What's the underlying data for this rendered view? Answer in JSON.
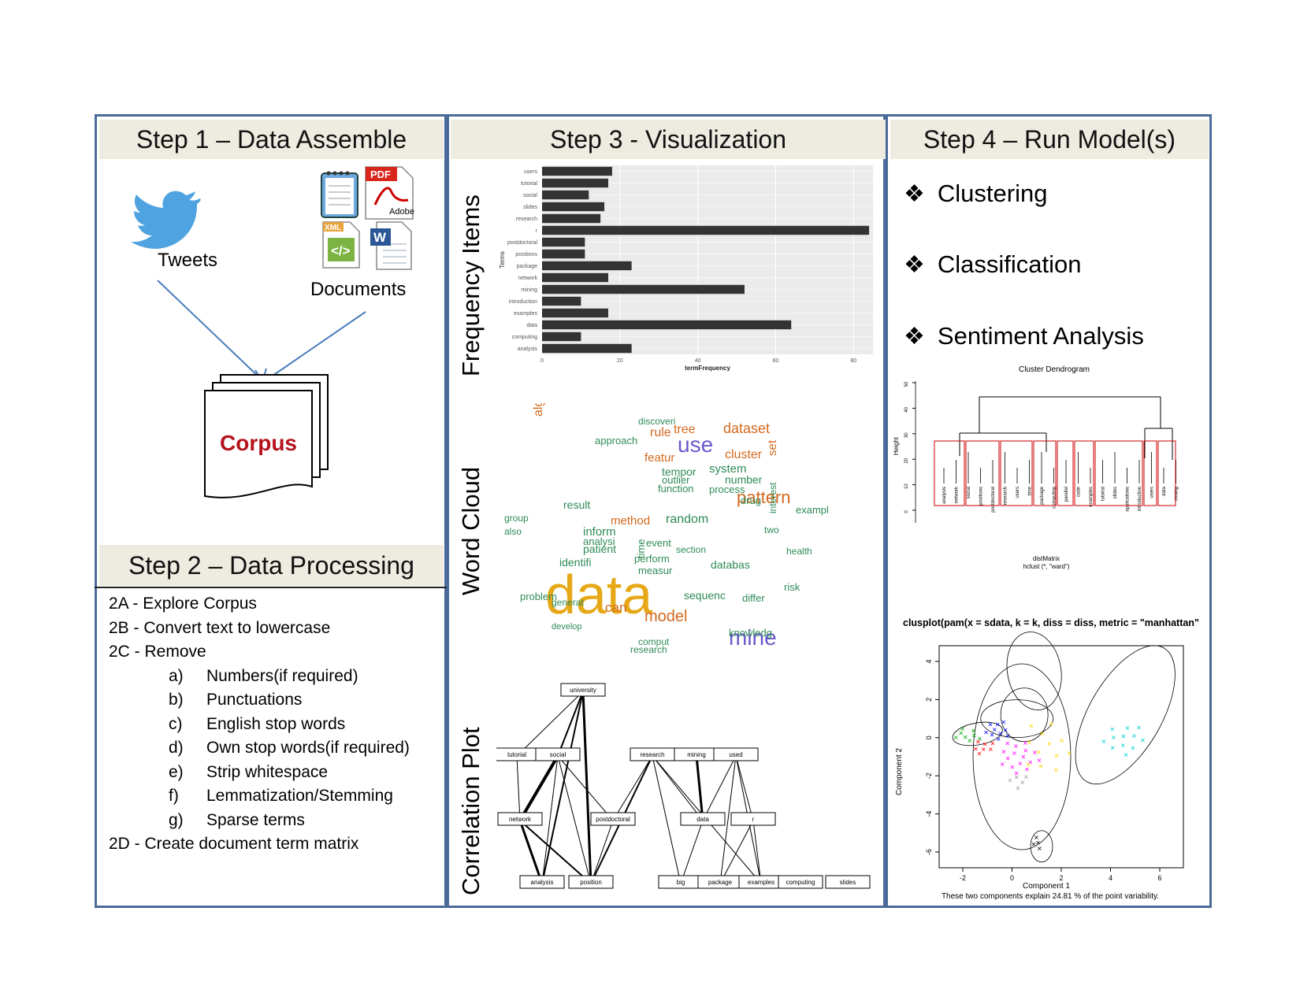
{
  "step1": {
    "title": "Step 1 – Data Assemble",
    "tweets_label": "Tweets",
    "documents_label": "Documents",
    "corpus_label": "Corpus",
    "pdf_label": "PDF",
    "adobe_label": "Adobe",
    "xml_label": "XML"
  },
  "step2": {
    "title": "Step 2 – Data Processing",
    "items": [
      "2A - Explore Corpus",
      "2B - Convert text to lowercase",
      "2C - Remove"
    ],
    "sub_items": [
      {
        "key": "a)",
        "text": "Numbers(if required)"
      },
      {
        "key": "b)",
        "text": "Punctuations"
      },
      {
        "key": "c)",
        "text": "English stop words"
      },
      {
        "key": "d)",
        "text": "Own stop words(if required)"
      },
      {
        "key": "e)",
        "text": "Strip whitespace"
      },
      {
        "key": "f)",
        "text": "Lemmatization/Stemming"
      },
      {
        "key": "g)",
        "text": "Sparse terms"
      }
    ],
    "final_item": "2D - Create document term matrix"
  },
  "step3": {
    "title": "Step 3 - Visualization",
    "freq_label": "Frequency Items",
    "wordcloud_label": "Word Cloud",
    "corr_label": "Correlation Plot"
  },
  "step4": {
    "title": "Step 4 – Run Model(s)",
    "models": [
      "Clustering",
      "Classification",
      "Sentiment Analysis"
    ],
    "dendrogram_title": "Cluster Dendrogram",
    "dendrogram_ylabel": "Height",
    "dendrogram_xlabel1": "distMatrix",
    "dendrogram_xlabel2": "hclust (*, \"ward\")",
    "dendrogram_yticks": [
      "0",
      "10",
      "20",
      "30",
      "40",
      "50"
    ],
    "clusplot_title": "clusplot(pam(x = sdata, k = k, diss = diss, metric = \"manhattan\"",
    "clusplot_xlabel": "Component 1",
    "clusplot_ylabel": "Component 2",
    "clusplot_caption": "These two components explain 24.81 % of the point variability.",
    "clusplot_xticks": [
      "-2",
      "0",
      "2",
      "4",
      "6"
    ],
    "clusplot_yticks": [
      "4",
      "2",
      "0",
      "-2",
      "-4",
      "-6"
    ]
  },
  "chart_data": [
    {
      "type": "bar",
      "orientation": "horizontal",
      "xlabel": "termFrequency",
      "ylabel": "Terms",
      "xlim": [
        0,
        85
      ],
      "xticks": [
        0,
        20,
        40,
        60,
        80
      ],
      "categories": [
        "users",
        "tutorial",
        "social",
        "slides",
        "research",
        "r",
        "postdoctoral",
        "positions",
        "package",
        "network",
        "mining",
        "introduction",
        "examples",
        "data",
        "computing",
        "analysis"
      ],
      "values": [
        18,
        17,
        12,
        16,
        15,
        84,
        11,
        11,
        23,
        17,
        52,
        10,
        17,
        64,
        10,
        23
      ],
      "bar_color": "#333333",
      "background": "#ebebeb",
      "grid": true
    }
  ],
  "wordcloud": {
    "words": [
      {
        "t": "data",
        "c": "#e6a817"
      },
      {
        "t": "mine",
        "c": "#6a5acd"
      },
      {
        "t": "use",
        "c": "#6a5acd"
      },
      {
        "t": "pattern",
        "c": "#d2691e"
      },
      {
        "t": "dataset",
        "c": "#d2691e"
      },
      {
        "t": "cluster",
        "c": "#d2691e"
      },
      {
        "t": "model",
        "c": "#d2691e"
      },
      {
        "t": "can",
        "c": "#d2691e"
      },
      {
        "t": "rule",
        "c": "#d2691e"
      },
      {
        "t": "tree",
        "c": "#d2691e"
      },
      {
        "t": "featur",
        "c": "#d2691e"
      },
      {
        "t": "method",
        "c": "#d2691e"
      },
      {
        "t": "algorithm",
        "c": "#d2691e"
      },
      {
        "t": "random",
        "c": "#2e8b57"
      },
      {
        "t": "system",
        "c": "#2e8b57"
      },
      {
        "t": "number",
        "c": "#2e8b57"
      },
      {
        "t": "outlier",
        "c": "#2e8b57"
      },
      {
        "t": "tempor",
        "c": "#2e8b57"
      },
      {
        "t": "approach",
        "c": "#2e8b57"
      },
      {
        "t": "inform",
        "c": "#2e8b57"
      },
      {
        "t": "patient",
        "c": "#2e8b57"
      },
      {
        "t": "analysi",
        "c": "#2e8b57"
      },
      {
        "t": "event",
        "c": "#2e8b57"
      },
      {
        "t": "perform",
        "c": "#2e8b57"
      },
      {
        "t": "databas",
        "c": "#2e8b57"
      },
      {
        "t": "knowledg",
        "c": "#2e8b57"
      },
      {
        "t": "sequenc",
        "c": "#2e8b57"
      },
      {
        "t": "problem",
        "c": "#2e8b57"
      },
      {
        "t": "result",
        "c": "#2e8b57"
      },
      {
        "t": "identifi",
        "c": "#2e8b57"
      },
      {
        "t": "measur",
        "c": "#2e8b57"
      },
      {
        "t": "discoveri",
        "c": "#2e8b57"
      },
      {
        "t": "function",
        "c": "#2e8b57"
      },
      {
        "t": "process",
        "c": "#2e8b57"
      },
      {
        "t": "drug",
        "c": "#2e8b57"
      },
      {
        "t": "exampl",
        "c": "#2e8b57"
      },
      {
        "t": "research",
        "c": "#2e8b57"
      },
      {
        "t": "comput",
        "c": "#2e8b57"
      },
      {
        "t": "develop",
        "c": "#2e8b57"
      },
      {
        "t": "generat",
        "c": "#2e8b57"
      },
      {
        "t": "time",
        "c": "#2e8b57"
      },
      {
        "t": "section",
        "c": "#2e8b57"
      },
      {
        "t": "differ",
        "c": "#2e8b57"
      },
      {
        "t": "risk",
        "c": "#2e8b57"
      },
      {
        "t": "health",
        "c": "#2e8b57"
      },
      {
        "t": "set",
        "c": "#d2691e"
      },
      {
        "t": "two",
        "c": "#2e8b57"
      },
      {
        "t": "also",
        "c": "#2e8b57"
      },
      {
        "t": "group",
        "c": "#2e8b57"
      },
      {
        "t": "interest",
        "c": "#2e8b57"
      }
    ]
  },
  "corr_plot": {
    "nodes": [
      "university",
      "tutorial",
      "social",
      "research",
      "mining",
      "used",
      "network",
      "postdoctoral",
      "data",
      "r",
      "analysis",
      "position",
      "big",
      "package",
      "examples",
      "computing",
      "slides"
    ]
  }
}
